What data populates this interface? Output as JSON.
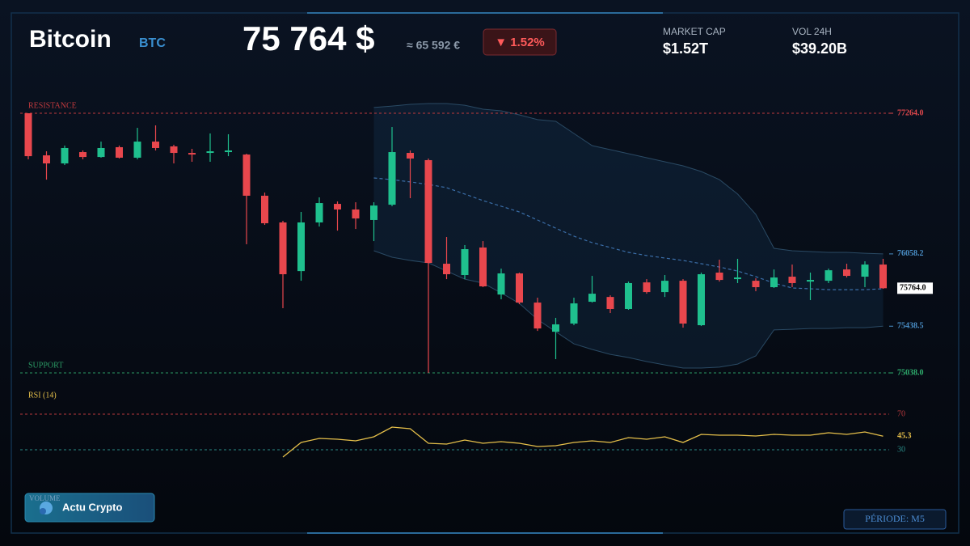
{
  "header": {
    "title": "Bitcoin",
    "symbol": "BTC",
    "price": "75 764 $",
    "price_eur": "≈ 65 592 €",
    "change": "▼ 1.52%",
    "stats": [
      {
        "label": "MARKET CAP",
        "value": "$1.52T"
      },
      {
        "label": "VOL 24H",
        "value": "$39.20B"
      }
    ]
  },
  "footer": {
    "volume_label": "VOLUME",
    "brand": "Actu Crypto",
    "period": "PÉRIODE: M5"
  },
  "chart_data": [
    {
      "type": "candlestick",
      "open": [
        77264,
        76903,
        76834,
        76931,
        76889,
        76973,
        76883,
        77021,
        76980,
        76924,
        76924,
        76931,
        76910,
        76557,
        76328,
        75911,
        76328,
        76487,
        76439,
        76349,
        76480,
        76924,
        76862,
        75974,
        75877,
        76113,
        75710,
        75891,
        75641,
        75391,
        75461,
        75648,
        75689,
        75586,
        75814,
        75731,
        75828,
        75447,
        75898,
        75842,
        75828,
        75773,
        75863,
        75821,
        75828,
        75925,
        75863,
        75967
      ],
      "high": [
        77264,
        76938,
        76987,
        76945,
        77021,
        76987,
        77139,
        77160,
        76994,
        76959,
        77091,
        77084,
        76917,
        76584,
        76342,
        76418,
        76543,
        76508,
        76501,
        76501,
        77146,
        76945,
        76876,
        76203,
        76134,
        76168,
        75932,
        75898,
        75683,
        75510,
        75683,
        75870,
        75703,
        75821,
        75842,
        75877,
        75842,
        75898,
        76009,
        76016,
        75849,
        75925,
        75967,
        75898,
        75932,
        75974,
        75995,
        76016
      ],
      "low": [
        76869,
        76695,
        76820,
        76869,
        76883,
        76876,
        76869,
        76945,
        76834,
        76848,
        76848,
        76896,
        76141,
        76307,
        75593,
        75828,
        76293,
        76258,
        76272,
        76168,
        76467,
        76536,
        75038,
        75842,
        75842,
        75773,
        75669,
        75627,
        75398,
        75156,
        75447,
        75641,
        75551,
        75579,
        75717,
        75689,
        75426,
        75440,
        75821,
        75808,
        75738,
        75766,
        75773,
        75662,
        75808,
        75856,
        75773,
        75759
      ],
      "close": [
        76896,
        76834,
        76966,
        76889,
        76966,
        76883,
        77021,
        76966,
        76924,
        76910,
        76938,
        76945,
        76557,
        76321,
        75884,
        76328,
        76494,
        76439,
        76362,
        76473,
        76931,
        76876,
        75981,
        75884,
        76099,
        75780,
        75891,
        75641,
        75419,
        75454,
        75634,
        75717,
        75586,
        75808,
        75731,
        75828,
        75461,
        75884,
        75835,
        75856,
        75773,
        75856,
        75808,
        75835,
        75918,
        75870,
        75967,
        75764
      ],
      "up_color": "#1fc08e",
      "down_color": "#e8474d",
      "bollinger": {
        "color": "#3b6ea8",
        "upper": [
          null,
          null,
          null,
          null,
          null,
          null,
          null,
          null,
          null,
          null,
          null,
          null,
          null,
          null,
          null,
          null,
          null,
          null,
          null,
          77313,
          77326,
          77340,
          77347,
          77347,
          77333,
          77299,
          77285,
          77250,
          77209,
          77195,
          77091,
          76987,
          76952,
          76917,
          76883,
          76848,
          76813,
          76765,
          76695,
          76571,
          76397,
          76106,
          76085,
          76078,
          76071,
          76071,
          76064,
          76058.2
        ],
        "middle": [
          null,
          null,
          null,
          null,
          null,
          null,
          null,
          null,
          null,
          null,
          null,
          null,
          null,
          null,
          null,
          null,
          null,
          null,
          null,
          76709,
          76695,
          76675,
          76654,
          76626,
          76571,
          76515,
          76467,
          76418,
          76349,
          76279,
          76210,
          76155,
          76113,
          76071,
          76044,
          76023,
          76002,
          75974,
          75946,
          75911,
          75863,
          75808,
          75766,
          75759,
          75752,
          75752,
          75752,
          75759
        ],
        "lower": [
          null,
          null,
          null,
          null,
          null,
          null,
          null,
          null,
          null,
          null,
          null,
          null,
          null,
          null,
          null,
          null,
          null,
          null,
          null,
          76085,
          76030,
          76002,
          75981,
          75911,
          75842,
          75808,
          75724,
          75634,
          75496,
          75391,
          75287,
          75239,
          75197,
          75170,
          75135,
          75107,
          75080,
          75080,
          75087,
          75114,
          75184,
          75406,
          75412,
          75419,
          75419,
          75426,
          75426,
          75438.5
        ]
      },
      "resistance": {
        "label": "RESISTANCE",
        "value": 77264,
        "color": "#c0393d"
      },
      "support": {
        "label": "SUPPORT",
        "value": 75038,
        "color": "#2a9a64"
      },
      "last_price": {
        "value": 75764,
        "label": "75764.0"
      },
      "ylim": [
        74975,
        77375
      ],
      "yticks": [
        {
          "value": 77264,
          "label": "77264.0"
        },
        76058.2,
        75438.5,
        {
          "value": 75038,
          "label": "75038.0"
        }
      ],
      "ytick_colors": [
        "#e0474c",
        "#4a90c8",
        "#4a90c8",
        "#2fae6e"
      ]
    },
    {
      "type": "line",
      "title": "RSI (14)",
      "color": "#e6c04a",
      "values": [
        null,
        null,
        null,
        null,
        null,
        null,
        null,
        null,
        null,
        null,
        null,
        null,
        null,
        null,
        21.8,
        38.2,
        42.7,
        41.8,
        40.0,
        44.5,
        55.5,
        53.6,
        37.3,
        36.4,
        40.9,
        37.3,
        39.1,
        37.3,
        33.6,
        34.5,
        38.2,
        40.0,
        38.2,
        43.6,
        41.8,
        44.5,
        38.2,
        47.3,
        46.4,
        46.4,
        45.5,
        47.3,
        46.4,
        46.4,
        49.1,
        47.3,
        50.0,
        45.3
      ],
      "ylim": [
        20,
        80
      ],
      "yticks": [
        70,
        30
      ],
      "ytick_colors": [
        "#b8383c",
        "#2a8c88"
      ]
    }
  ]
}
